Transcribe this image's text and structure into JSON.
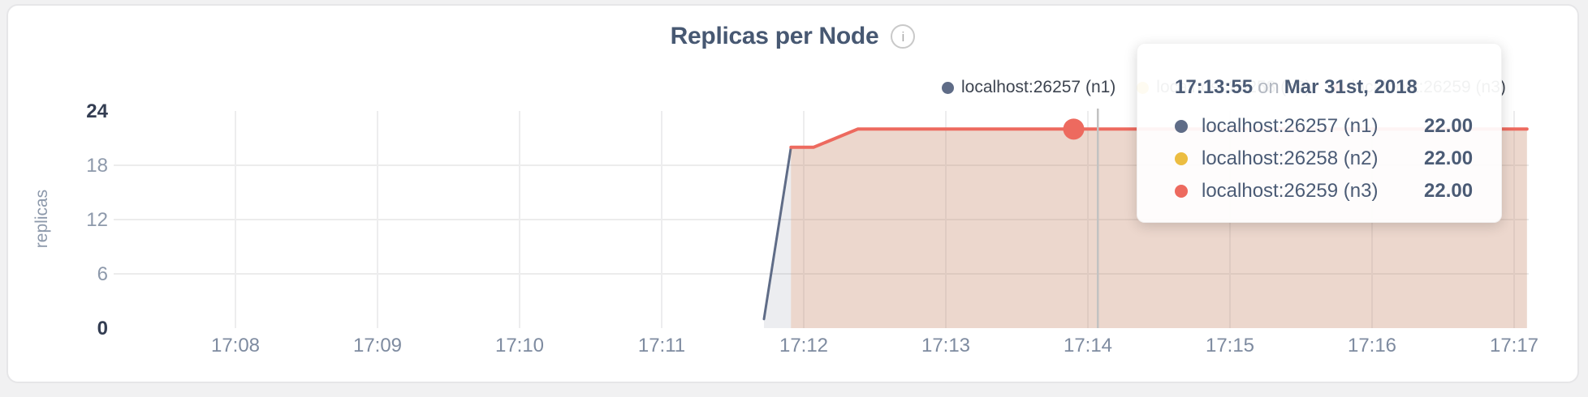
{
  "header": {
    "title": "Replicas per Node",
    "info_glyph": "i"
  },
  "chart_data": {
    "type": "area",
    "title": "Replicas per Node",
    "xlabel": "",
    "ylabel": "replicas",
    "ylim": [
      0,
      24
    ],
    "yticks": [
      0,
      6,
      12,
      18,
      24
    ],
    "grid": true,
    "legend_position": "top-right",
    "xtick_labels": [
      "17:08",
      "17:09",
      "17:10",
      "17:11",
      "17:12",
      "17:13",
      "17:14",
      "17:15",
      "17:16",
      "17:17"
    ],
    "xtick_minutes_after_1700": [
      8,
      9,
      10,
      11,
      12,
      13,
      14,
      15,
      16,
      17
    ],
    "series": [
      {
        "name": "localhost:26257 (n1)",
        "color": "#5f6c87",
        "fill": "rgba(95,108,135,0.12)",
        "points_min_value": [
          [
            11.72,
            1
          ],
          [
            11.91,
            20
          ],
          [
            12.07,
            20
          ],
          [
            12.38,
            22
          ],
          [
            17.09,
            22
          ]
        ]
      },
      {
        "name": "localhost:26258 (n2)",
        "color": "#ecbd41",
        "fill": "rgba(236,189,65,0.10)",
        "points_min_value": [
          [
            11.91,
            20
          ],
          [
            12.07,
            20
          ],
          [
            12.38,
            22
          ],
          [
            17.09,
            22
          ]
        ]
      },
      {
        "name": "localhost:26259 (n3)",
        "color": "#ed6a5f",
        "fill": "rgba(237,106,95,0.13)",
        "points_min_value": [
          [
            11.91,
            20
          ],
          [
            12.07,
            20
          ],
          [
            12.38,
            22
          ],
          [
            17.09,
            22
          ]
        ]
      }
    ],
    "hover": {
      "time": "17:13:55",
      "time_min": 13.9,
      "value": 22,
      "cursor_min": 14.07,
      "dot_series": "localhost:26259 (n3)"
    }
  },
  "tooltip": {
    "time": "17:13:55",
    "separator": "on",
    "date": "Mar 31st, 2018",
    "rows": [
      {
        "name": "localhost:26257 (n1)",
        "value": "22.00",
        "color": "#5f6c87"
      },
      {
        "name": "localhost:26258 (n2)",
        "value": "22.00",
        "color": "#ecbd41"
      },
      {
        "name": "localhost:26259 (n3)",
        "value": "22.00",
        "color": "#ed6a5f"
      }
    ]
  }
}
